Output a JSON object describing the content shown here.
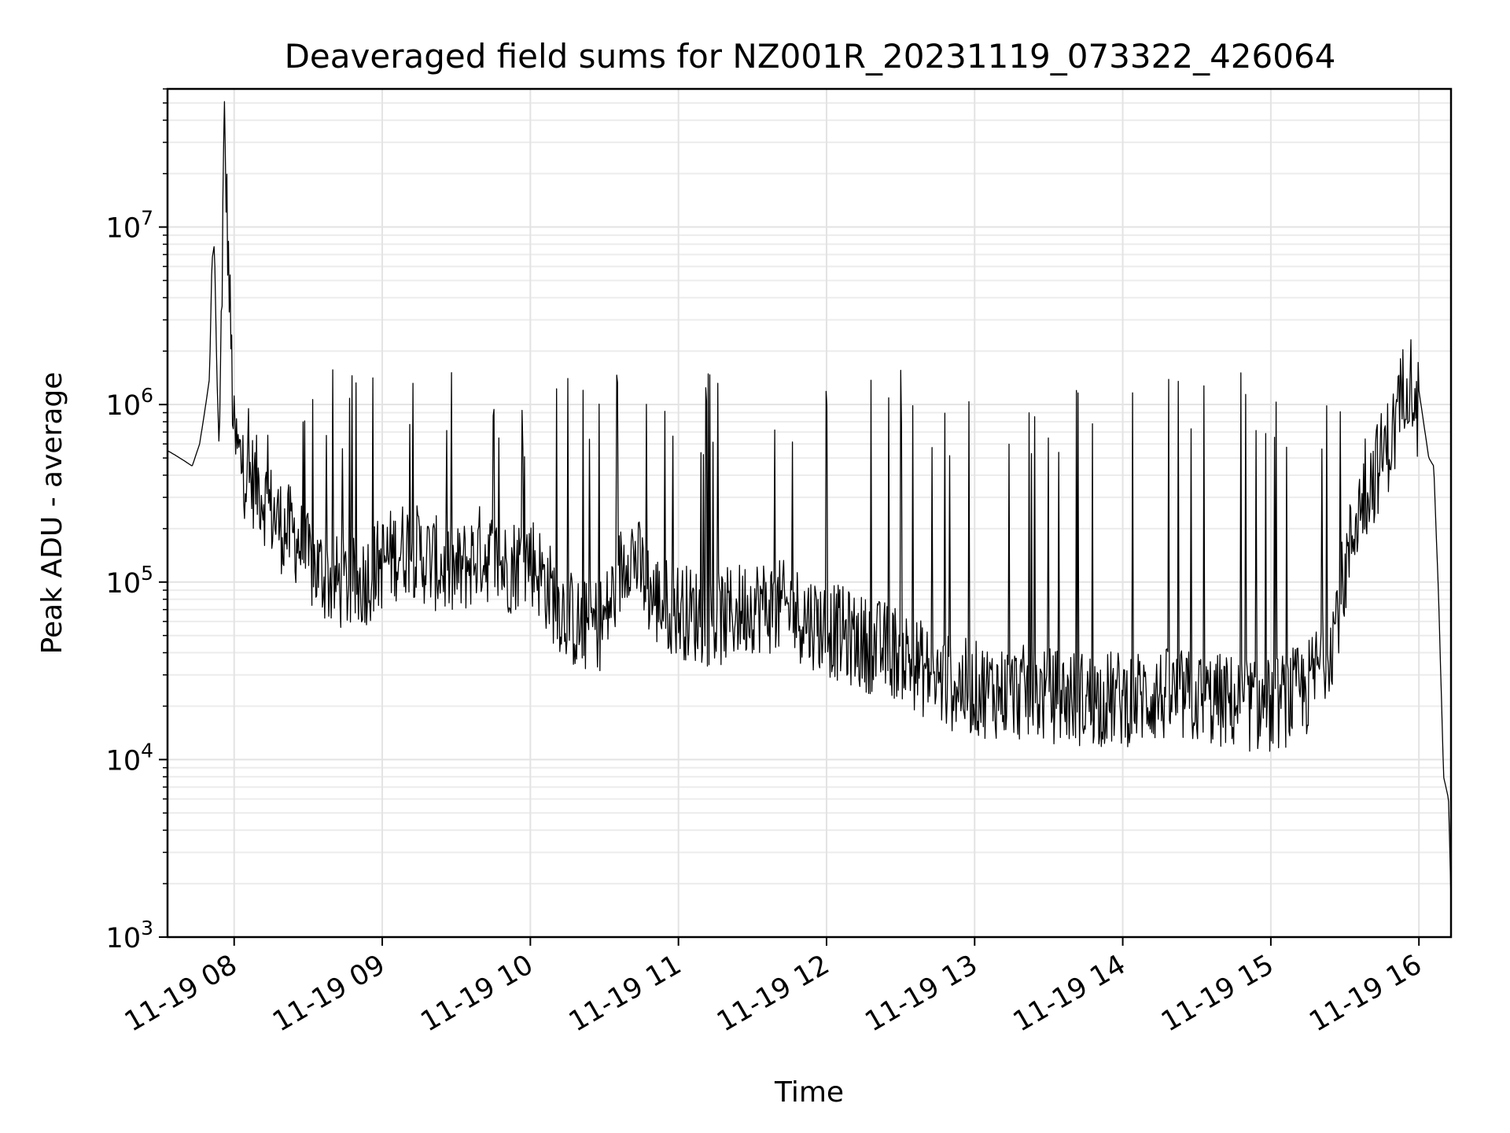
{
  "chart_data": {
    "type": "line",
    "title": "Deaveraged field sums for NZ001R_20231119_073322_426064",
    "xlabel": "Time",
    "ylabel": "Peak ADU - average",
    "yscale": "log",
    "ylim": [
      1000,
      60000000
    ],
    "xlim": [
      "2023-11-19 07:33",
      "2023-11-19 16:13"
    ],
    "grid": true,
    "x_ticks": [
      "11-19 08",
      "11-19 09",
      "11-19 10",
      "11-19 11",
      "11-19 12",
      "11-19 13",
      "11-19 14",
      "11-19 15",
      "11-19 16"
    ],
    "y_ticks": [
      {
        "base": "10",
        "exp": "3"
      },
      {
        "base": "10",
        "exp": "4"
      },
      {
        "base": "10",
        "exp": "5"
      },
      {
        "base": "10",
        "exp": "6"
      },
      {
        "base": "10",
        "exp": "7"
      }
    ],
    "series": [
      {
        "color": "#000000",
        "x": [
          "2023-11-19 07:33",
          "2023-11-19 07:36",
          "2023-11-19 07:40",
          "2023-11-19 07:43",
          "2023-11-19 07:46",
          "2023-11-19 07:48",
          "2023-11-19 07:50",
          "2023-11-19 07:51",
          "2023-11-19 07:52",
          "2023-11-19 07:53",
          "2023-11-19 07:54",
          "2023-11-19 07:56",
          "2023-11-19 07:58",
          "2023-11-19 08:00",
          "2023-11-19 08:05",
          "2023-11-19 08:10",
          "2023-11-19 08:15",
          "2023-11-19 08:20",
          "2023-11-19 08:25",
          "2023-11-19 08:30",
          "2023-11-19 08:40",
          "2023-11-19 08:50",
          "2023-11-19 09:00",
          "2023-11-19 09:10",
          "2023-11-19 09:20",
          "2023-11-19 09:30",
          "2023-11-19 09:40",
          "2023-11-19 09:50",
          "2023-11-19 10:00",
          "2023-11-19 10:10",
          "2023-11-19 10:20",
          "2023-11-19 10:30",
          "2023-11-19 10:40",
          "2023-11-19 10:50",
          "2023-11-19 11:00",
          "2023-11-19 11:15",
          "2023-11-19 11:30",
          "2023-11-19 11:45",
          "2023-11-19 12:00",
          "2023-11-19 12:15",
          "2023-11-19 12:30",
          "2023-11-19 12:45",
          "2023-11-19 13:00",
          "2023-11-19 13:15",
          "2023-11-19 13:30",
          "2023-11-19 13:45",
          "2023-11-19 14:00",
          "2023-11-19 14:15",
          "2023-11-19 14:30",
          "2023-11-19 14:45",
          "2023-11-19 15:00",
          "2023-11-19 15:15",
          "2023-11-19 15:25",
          "2023-11-19 15:35",
          "2023-11-19 15:45",
          "2023-11-19 15:50",
          "2023-11-19 15:55",
          "2023-11-19 16:00",
          "2023-11-19 16:04",
          "2023-11-19 16:06",
          "2023-11-19 16:08",
          "2023-11-19 16:10",
          "2023-11-19 16:12",
          "2023-11-19 16:13"
        ],
        "y": [
          550000,
          520000,
          480000,
          450000,
          600000,
          900000,
          1400000,
          6500000,
          8000000,
          1500000,
          500000,
          38000000,
          4500000,
          600000,
          400000,
          350000,
          250000,
          200000,
          180000,
          130000,
          100000,
          95000,
          130000,
          160000,
          130000,
          110000,
          150000,
          120000,
          140000,
          80000,
          55000,
          60000,
          160000,
          80000,
          70000,
          60000,
          75000,
          70000,
          55000,
          45000,
          40000,
          28000,
          25000,
          24000,
          23000,
          22000,
          22000,
          23000,
          22000,
          21000,
          20000,
          25000,
          50000,
          250000,
          500000,
          700000,
          1500000,
          1200000,
          500000,
          450000,
          80000,
          8000,
          6000,
          1600
        ]
      }
    ],
    "spikes": {
      "description_of_data": "frequent narrow upward spikes to ~1e6 across the run",
      "typical_peak": 1000000,
      "max_peak": 38000000
    }
  }
}
